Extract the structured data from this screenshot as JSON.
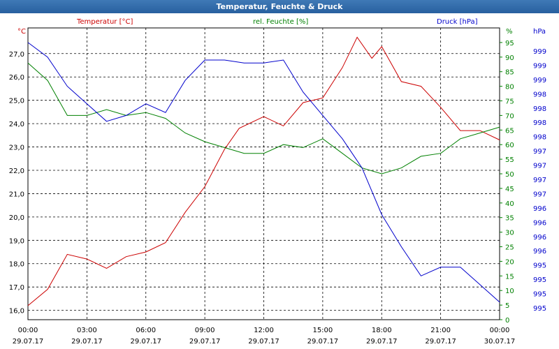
{
  "window": {
    "title": "Temperatur, Feuchte & Druck"
  },
  "chart_data": {
    "type": "line",
    "title": "Temperatur, Feuchte & Druck",
    "colors": {
      "temperature": "#cc0000",
      "humidity": "#008000",
      "pressure": "#0000cc",
      "grid": "#000000"
    },
    "x_ticks": [
      {
        "time": "00:00",
        "date": "29.07.17"
      },
      {
        "time": "03:00",
        "date": "29.07.17"
      },
      {
        "time": "06:00",
        "date": "29.07.17"
      },
      {
        "time": "09:00",
        "date": "29.07.17"
      },
      {
        "time": "12:00",
        "date": "29.07.17"
      },
      {
        "time": "15:00",
        "date": "29.07.17"
      },
      {
        "time": "18:00",
        "date": "29.07.17"
      },
      {
        "time": "21:00",
        "date": "29.07.17"
      },
      {
        "time": "00:00",
        "date": "30.07.17"
      }
    ],
    "xlim": [
      "29.07.17 00:00",
      "30.07.17 00:00"
    ],
    "axes": {
      "temperature": {
        "label": "Temperatur [°C]",
        "unit": "°C",
        "ylim": [
          15.6,
          28.1
        ],
        "ticks": [
          "16,0",
          "17,0",
          "18,0",
          "19,0",
          "20,0",
          "21,0",
          "22,0",
          "23,0",
          "24,0",
          "25,0",
          "26,0",
          "27,0"
        ]
      },
      "humidity": {
        "label": "rel. Feuchte [%]",
        "unit": "%",
        "ylim": [
          0,
          100
        ],
        "ticks": [
          "0",
          "5",
          "10",
          "15",
          "20",
          "25",
          "30",
          "35",
          "40",
          "45",
          "50",
          "55",
          "60",
          "65",
          "70",
          "75",
          "80",
          "85",
          "90",
          "95"
        ]
      },
      "pressure": {
        "label": "Druck [hPa]",
        "unit": "hPa",
        "ticks": [
          "995",
          "995",
          "995",
          "995",
          "996",
          "996",
          "996",
          "996",
          "997",
          "997",
          "997",
          "997",
          "998",
          "998",
          "998",
          "998",
          "999",
          "999",
          "999"
        ]
      }
    },
    "series": [
      {
        "name": "Temperatur [°C]",
        "axis": "temperature",
        "x": [
          "29.07.17 00:00",
          "29.07.17 01:00",
          "29.07.17 02:00",
          "29.07.17 03:00",
          "29.07.17 04:00",
          "29.07.17 05:00",
          "29.07.17 06:00",
          "29.07.17 07:00",
          "29.07.17 08:00",
          "29.07.17 09:00",
          "29.07.17 10:00",
          "29.07.17 10:45",
          "29.07.17 12:00",
          "29.07.17 13:00",
          "29.07.17 14:00",
          "29.07.17 15:00",
          "29.07.17 16:00",
          "29.07.17 16:45",
          "29.07.17 17:30",
          "29.07.17 18:00",
          "29.07.17 19:00",
          "29.07.17 20:00",
          "29.07.17 21:00",
          "29.07.17 22:00",
          "29.07.17 23:00",
          "30.07.17 00:00"
        ],
        "values": [
          16.2,
          16.9,
          18.4,
          18.2,
          17.8,
          18.3,
          18.5,
          18.9,
          20.2,
          21.3,
          22.9,
          23.8,
          24.3,
          23.9,
          24.9,
          25.1,
          26.4,
          27.7,
          26.8,
          27.3,
          25.8,
          25.6,
          24.7,
          23.7,
          23.7,
          23.3
        ]
      },
      {
        "name": "rel. Feuchte [%]",
        "axis": "humidity",
        "x": [
          "29.07.17 00:00",
          "29.07.17 01:00",
          "29.07.17 02:00",
          "29.07.17 03:00",
          "29.07.17 04:00",
          "29.07.17 05:00",
          "29.07.17 06:00",
          "29.07.17 07:00",
          "29.07.17 08:00",
          "29.07.17 09:00",
          "29.07.17 10:00",
          "29.07.17 11:00",
          "29.07.17 12:00",
          "29.07.17 13:00",
          "29.07.17 14:00",
          "29.07.17 15:00",
          "29.07.17 16:00",
          "29.07.17 17:00",
          "29.07.17 18:00",
          "29.07.17 19:00",
          "29.07.17 20:00",
          "29.07.17 21:00",
          "29.07.17 22:00",
          "29.07.17 23:00",
          "30.07.17 00:00"
        ],
        "values": [
          88,
          82,
          70,
          70,
          72,
          70,
          71,
          69,
          64,
          61,
          59,
          57,
          57,
          60,
          59,
          62,
          57,
          52,
          50,
          52,
          56,
          57,
          62,
          64,
          66
        ]
      },
      {
        "name": "Druck [hPa]",
        "axis": "pressure",
        "x": [
          "29.07.17 00:00",
          "29.07.17 01:00",
          "29.07.17 02:00",
          "29.07.17 03:00",
          "29.07.17 04:00",
          "29.07.17 05:00",
          "29.07.17 06:00",
          "29.07.17 07:00",
          "29.07.17 08:00",
          "29.07.17 09:00",
          "29.07.17 10:00",
          "29.07.17 11:00",
          "29.07.17 12:00",
          "29.07.17 13:00",
          "29.07.17 14:00",
          "29.07.17 15:00",
          "29.07.17 16:00",
          "29.07.17 17:00",
          "29.07.17 18:00",
          "29.07.17 19:00",
          "29.07.17 20:00",
          "29.07.17 21:00",
          "29.07.17 22:00",
          "29.07.17 23:00",
          "30.07.17 00:00"
        ],
        "values": [
          95,
          90,
          80,
          74,
          68,
          70,
          74,
          71,
          82,
          89,
          89,
          88,
          88,
          89,
          78,
          70,
          62,
          52,
          36,
          25,
          15,
          18,
          18,
          12,
          6
        ],
        "value_unit": "% of plot height (right hPa axis)"
      }
    ],
    "grid": true,
    "legend": "top, one label above each axis"
  }
}
